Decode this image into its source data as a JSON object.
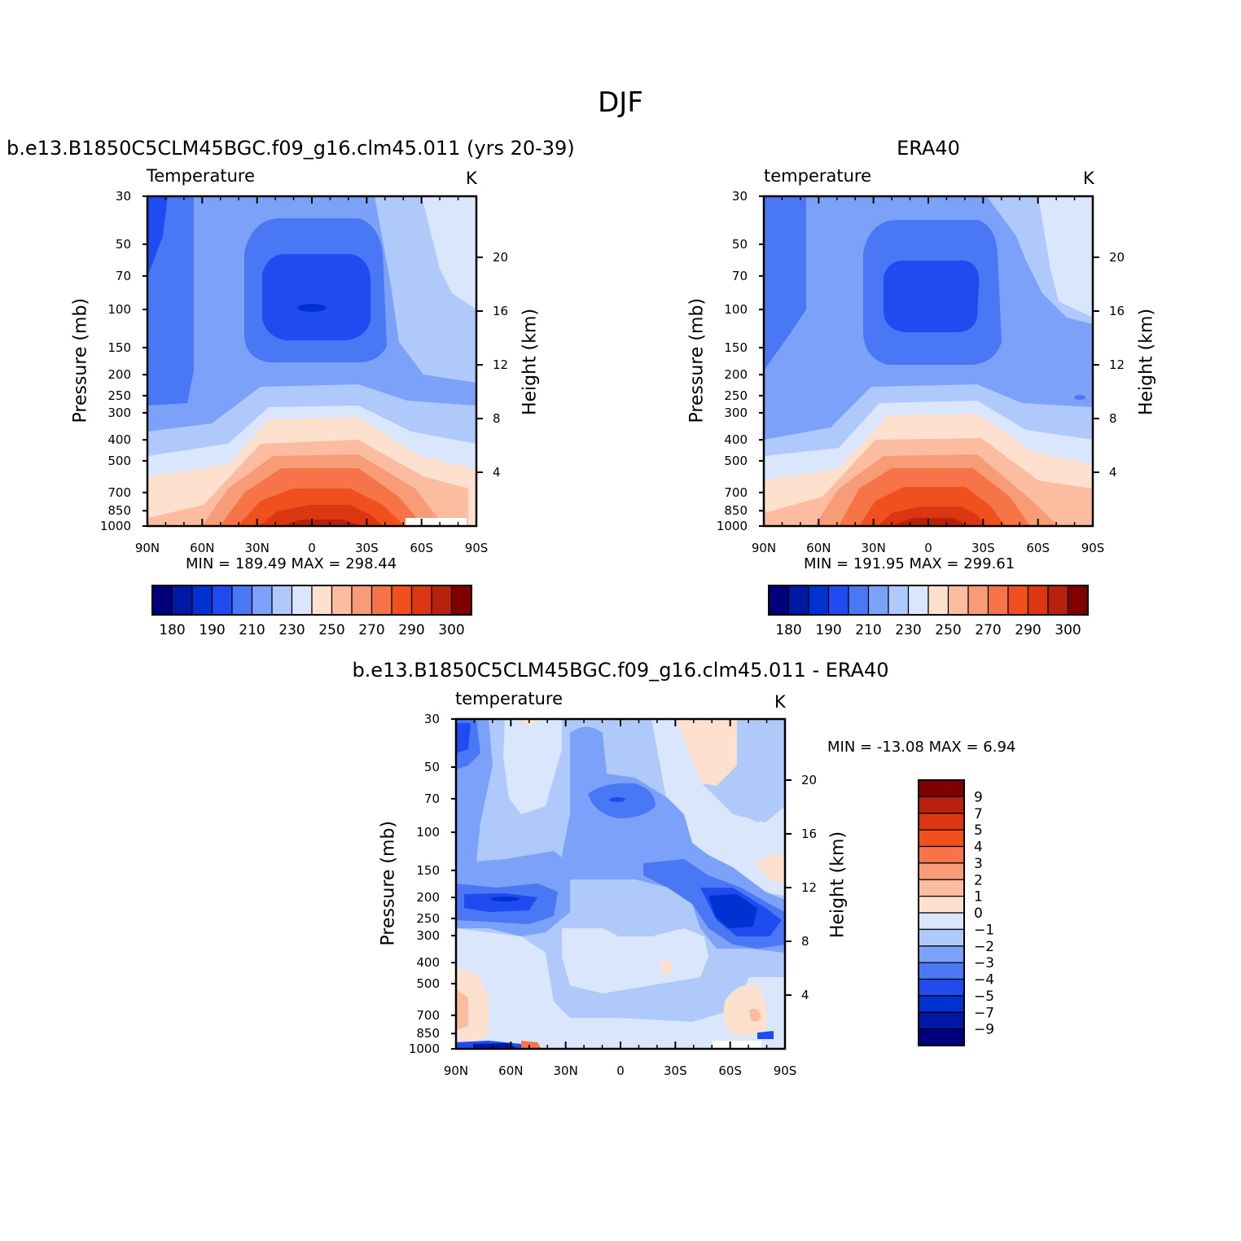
{
  "figure": {
    "title": "DJF"
  },
  "colors": {
    "abs_levels": [
      "#00007f",
      "#0019a5",
      "#0032d2",
      "#1f4bf0",
      "#4a78f5",
      "#7ba2f8",
      "#b0c9fb",
      "#d9e6fc",
      "#fde0cd",
      "#fbbc9f",
      "#f89c78",
      "#f67448",
      "#f0501e",
      "#dc3712",
      "#b8220a",
      "#800000"
    ],
    "diff_levels": [
      "#00007f",
      "#0019a5",
      "#0032d2",
      "#1f4bf0",
      "#4a78f5",
      "#7ba2f8",
      "#b0c9fb",
      "#d9e6fc",
      "#fde0cd",
      "#fbbc9f",
      "#f89c78",
      "#f67448",
      "#f0501e",
      "#dc3712",
      "#b8220a",
      "#800000"
    ]
  },
  "panels": [
    {
      "id": "model",
      "title": "b.e13.B1850C5CLM45BGC.f09_g16.clm45.011 (yrs 20-39)",
      "variable": "Temperature",
      "units": "K",
      "min_max": "MIN =  189.49   MAX =  298.44",
      "y_left_title": "Pressure (mb)",
      "y_right_title": "Height (km)"
    },
    {
      "id": "obs",
      "title": "ERA40",
      "variable": "temperature",
      "units": "K",
      "min_max": "MIN =  191.95   MAX =  299.61",
      "y_left_title": "Pressure (mb)",
      "y_right_title": "Height (km)"
    },
    {
      "id": "diff",
      "title": "b.e13.B1850C5CLM45BGC.f09_g16.clm45.011 - ERA40",
      "variable": "temperature",
      "units": "K",
      "min_max": "MIN = -13.08   MAX =     6.94",
      "y_left_title": "Pressure (mb)",
      "y_right_title": "Height (km)"
    }
  ],
  "axes": {
    "pressure_ticks": [
      "30",
      "50",
      "70",
      "100",
      "150",
      "200",
      "250",
      "300",
      "400",
      "500",
      "700",
      "850",
      "1000"
    ],
    "height_ticks": [
      "20",
      "16",
      "12",
      "8",
      "4"
    ],
    "lat_ticks": [
      "90N",
      "60N",
      "30N",
      "0",
      "30S",
      "60S",
      "90S"
    ]
  },
  "abs_colorbar": {
    "labels": [
      "180",
      "190",
      "210",
      "230",
      "250",
      "270",
      "290",
      "300"
    ]
  },
  "diff_colorbar": {
    "labels": [
      "9",
      "7",
      "5",
      "4",
      "3",
      "2",
      "1",
      "0",
      "-1",
      "-2",
      "-3",
      "-4",
      "-5",
      "-7",
      "-9"
    ]
  },
  "chart_data": [
    {
      "type": "heatmap",
      "title": "b.e13.B1850C5CLM45BGC.f09_g16.clm45.011 (yrs 20-39)",
      "variable": "Temperature",
      "units": "K",
      "x": [
        90,
        60,
        30,
        0,
        -30,
        -60,
        -90
      ],
      "xlabel": "",
      "ylabel": "Pressure (mb)",
      "y": [
        30,
        50,
        70,
        100,
        150,
        200,
        250,
        300,
        400,
        500,
        700,
        850,
        1000
      ],
      "ylim": [
        1000,
        30
      ],
      "levels": [
        180,
        190,
        200,
        210,
        220,
        230,
        240,
        250,
        260,
        270,
        280,
        290,
        295,
        300
      ],
      "min": 189.49,
      "max": 298.44
    },
    {
      "type": "heatmap",
      "title": "ERA40",
      "variable": "temperature",
      "units": "K",
      "x": [
        90,
        60,
        30,
        0,
        -30,
        -60,
        -90
      ],
      "xlabel": "",
      "ylabel": "Pressure (mb)",
      "y": [
        30,
        50,
        70,
        100,
        150,
        200,
        250,
        300,
        400,
        500,
        700,
        850,
        1000
      ],
      "ylim": [
        1000,
        30
      ],
      "levels": [
        180,
        190,
        200,
        210,
        220,
        230,
        240,
        250,
        260,
        270,
        280,
        290,
        295,
        300
      ],
      "min": 191.95,
      "max": 299.61
    },
    {
      "type": "heatmap",
      "title": "b.e13.B1850C5CLM45BGC.f09_g16.clm45.011 - ERA40",
      "variable": "temperature",
      "units": "K",
      "x": [
        90,
        60,
        30,
        0,
        -30,
        -60,
        -90
      ],
      "xlabel": "",
      "ylabel": "Pressure (mb)",
      "y": [
        30,
        50,
        70,
        100,
        150,
        200,
        250,
        300,
        400,
        500,
        700,
        850,
        1000
      ],
      "ylim": [
        1000,
        30
      ],
      "levels": [
        -9,
        -7,
        -5,
        -4,
        -3,
        -2,
        -1,
        0,
        1,
        2,
        3,
        4,
        5,
        7,
        9
      ],
      "min": -13.08,
      "max": 6.94
    }
  ]
}
